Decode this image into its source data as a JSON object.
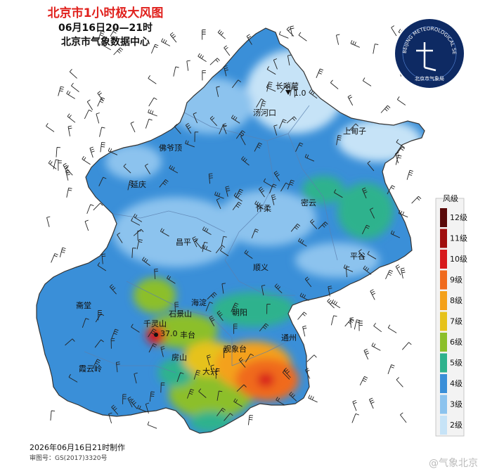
{
  "header": {
    "title": "北京市1小时极大风图",
    "subtitle": "06月16日20—21时",
    "org": "北京市气象数据中心"
  },
  "logo": {
    "ring_text": "BEIJING METEOROLOGICAL SERVICE",
    "cn_text": "北京市气象局",
    "icon": "weather-service-emblem-icon"
  },
  "places": [
    {
      "id": "changshaoying",
      "label": "长哨营"
    },
    {
      "id": "changshaoying-value",
      "label": "1.0"
    },
    {
      "id": "tanghekou",
      "label": "汤河口"
    },
    {
      "id": "shangdianzi",
      "label": "上甸子"
    },
    {
      "id": "fuoye",
      "label": "佛爷顶"
    },
    {
      "id": "yanqing",
      "label": "延庆"
    },
    {
      "id": "huairou",
      "label": "怀柔"
    },
    {
      "id": "miyun",
      "label": "密云"
    },
    {
      "id": "changping",
      "label": "昌平"
    },
    {
      "id": "pinggu",
      "label": "平谷"
    },
    {
      "id": "shunyi",
      "label": "顺义"
    },
    {
      "id": "zhaitang",
      "label": "斋堂"
    },
    {
      "id": "haidian",
      "label": "海淀"
    },
    {
      "id": "chaoyang",
      "label": "朝阳"
    },
    {
      "id": "shijingshan",
      "label": "石景山"
    },
    {
      "id": "qianlingshan",
      "label": "千灵山"
    },
    {
      "id": "fengtai",
      "label": "丰台"
    },
    {
      "id": "tongzhou",
      "label": "通州"
    },
    {
      "id": "guanxiangtai",
      "label": "观象台"
    },
    {
      "id": "fangshan",
      "label": "房山"
    },
    {
      "id": "daxing",
      "label": "大兴"
    },
    {
      "id": "xiayunling",
      "label": "霞云岭"
    },
    {
      "id": "hidden-value",
      "label": "37.0"
    }
  ],
  "legend": {
    "title": "风级",
    "items": [
      {
        "label": "12级",
        "color": "#5a0a0a"
      },
      {
        "label": "11级",
        "color": "#a00d0d"
      },
      {
        "label": "10级",
        "color": "#d7191c"
      },
      {
        "label": "9级",
        "color": "#f06a1d"
      },
      {
        "label": "8级",
        "color": "#f4a11a"
      },
      {
        "label": "7级",
        "color": "#e6c21a"
      },
      {
        "label": "6级",
        "color": "#8cbf2a"
      },
      {
        "label": "5级",
        "color": "#2eb28d"
      },
      {
        "label": "4级",
        "color": "#3a8fd8"
      },
      {
        "label": "3级",
        "color": "#8cc3ee"
      },
      {
        "label": "2级",
        "color": "#c6e3f7"
      }
    ]
  },
  "footer": {
    "made": "2026年06月16日21时制作",
    "review": "审图号：GS(2017)3320号",
    "watermark": "@气象北京"
  }
}
